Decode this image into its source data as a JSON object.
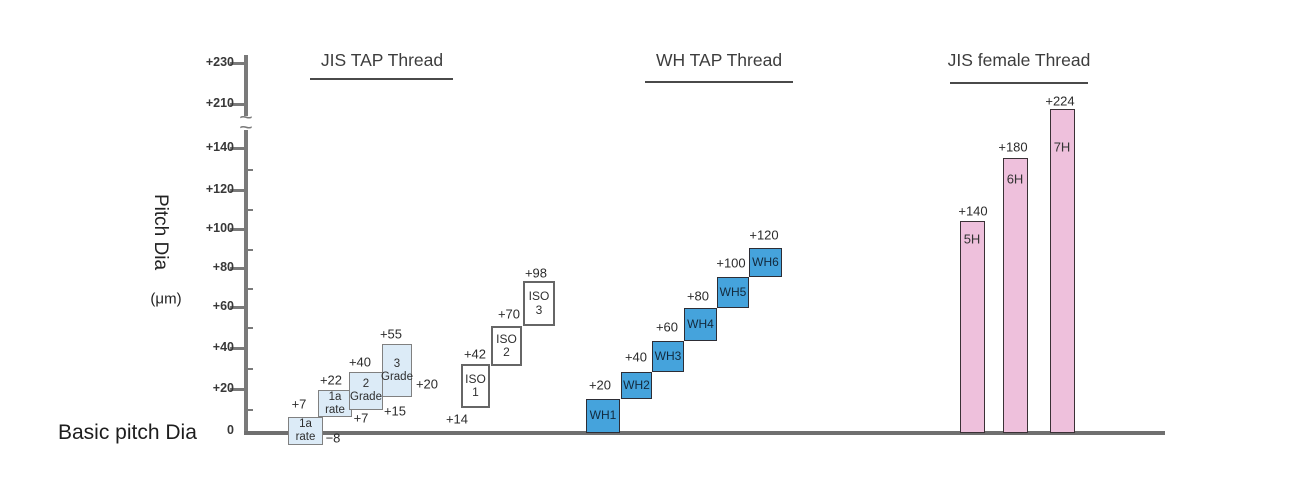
{
  "colors": {
    "axis": "#7a7a7a",
    "baseline": "#6f6f6f",
    "light_box_fill": "#dcebf7",
    "light_box_border": "#808080",
    "white_box_fill": "#ffffff",
    "white_box_border": "#666666",
    "blue_box_fill": "#45a3dc",
    "blue_box_border": "#2d2d35",
    "blue_box_text": "#13293c",
    "pink_bar_fill": "#eec0dc",
    "pink_bar_border": "#3a3136"
  },
  "y_axis": {
    "label": "Pitch Dia",
    "unit": "(μm)",
    "tick_labels": [
      "+230",
      "+210",
      "+140",
      "+120",
      "+100",
      "+80",
      "+60",
      "+40",
      "+20",
      "0"
    ],
    "has_break": true
  },
  "x_axis": {
    "label": "Basic pitch Dia"
  },
  "chart_data": {
    "type": "bar",
    "subtype": "floating-tolerance-band-comparison",
    "unit": "μm",
    "ylabel": "Pitch Dia (μm)",
    "xlabel": "Basic pitch Dia",
    "ylim": [
      -10,
      235
    ],
    "axis_break_between": [
      140,
      210
    ],
    "grid": false,
    "groups": [
      {
        "title": "JIS TAP Thread",
        "boxes": [
          {
            "label_lines": [
              "1a",
              "rate"
            ],
            "top": 7,
            "bottom": -8,
            "top_label": "+7",
            "bottom_label": "−8",
            "style": "light"
          },
          {
            "label_lines": [
              "1a",
              "rate"
            ],
            "top": 22,
            "bottom": 7,
            "top_label": "+22",
            "bottom_label": "+7",
            "style": "light"
          },
          {
            "label_lines": [
              "2",
              "Grade"
            ],
            "top": 40,
            "bottom": 15,
            "top_label": "+40",
            "bottom_label": "+15",
            "style": "light"
          },
          {
            "label_lines": [
              "3",
              "Grade"
            ],
            "top": 55,
            "bottom": 20,
            "top_label": "+55",
            "bottom_label": "+20",
            "style": "light"
          },
          {
            "label_lines": [
              "ISO",
              "1"
            ],
            "top": 42,
            "bottom": 14,
            "top_label": "+42",
            "bottom_label": "+14",
            "style": "white"
          },
          {
            "label_lines": [
              "ISO",
              "2"
            ],
            "top": 70,
            "bottom": 42,
            "top_label": "+70",
            "bottom_label": null,
            "style": "white"
          },
          {
            "label_lines": [
              "ISO",
              "3"
            ],
            "top": 98,
            "bottom": 70,
            "top_label": "+98",
            "bottom_label": null,
            "style": "white"
          }
        ]
      },
      {
        "title": "WH TAP Thread",
        "boxes": [
          {
            "label_lines": [
              "WH1"
            ],
            "top": 20,
            "bottom": 0,
            "top_label": "+20",
            "bottom_label": null,
            "style": "blue"
          },
          {
            "label_lines": [
              "WH2"
            ],
            "top": 40,
            "bottom": 20,
            "top_label": "+40",
            "bottom_label": null,
            "style": "blue"
          },
          {
            "label_lines": [
              "WH3"
            ],
            "top": 60,
            "bottom": 40,
            "top_label": "+60",
            "bottom_label": null,
            "style": "blue"
          },
          {
            "label_lines": [
              "WH4"
            ],
            "top": 80,
            "bottom": 60,
            "top_label": "+80",
            "bottom_label": null,
            "style": "blue"
          },
          {
            "label_lines": [
              "WH5"
            ],
            "top": 100,
            "bottom": 80,
            "top_label": "+100",
            "bottom_label": null,
            "style": "blue"
          },
          {
            "label_lines": [
              "WH6"
            ],
            "top": 120,
            "bottom": 100,
            "top_label": "+120",
            "bottom_label": null,
            "style": "blue"
          }
        ]
      },
      {
        "title": "JIS female Thread",
        "bars": [
          {
            "label": "5H",
            "top": 140,
            "bottom": 0,
            "top_label": "+140"
          },
          {
            "label": "6H",
            "top": 180,
            "bottom": 0,
            "top_label": "+180"
          },
          {
            "label": "7H",
            "top": 224,
            "bottom": 0,
            "top_label": "+224"
          }
        ]
      }
    ]
  }
}
